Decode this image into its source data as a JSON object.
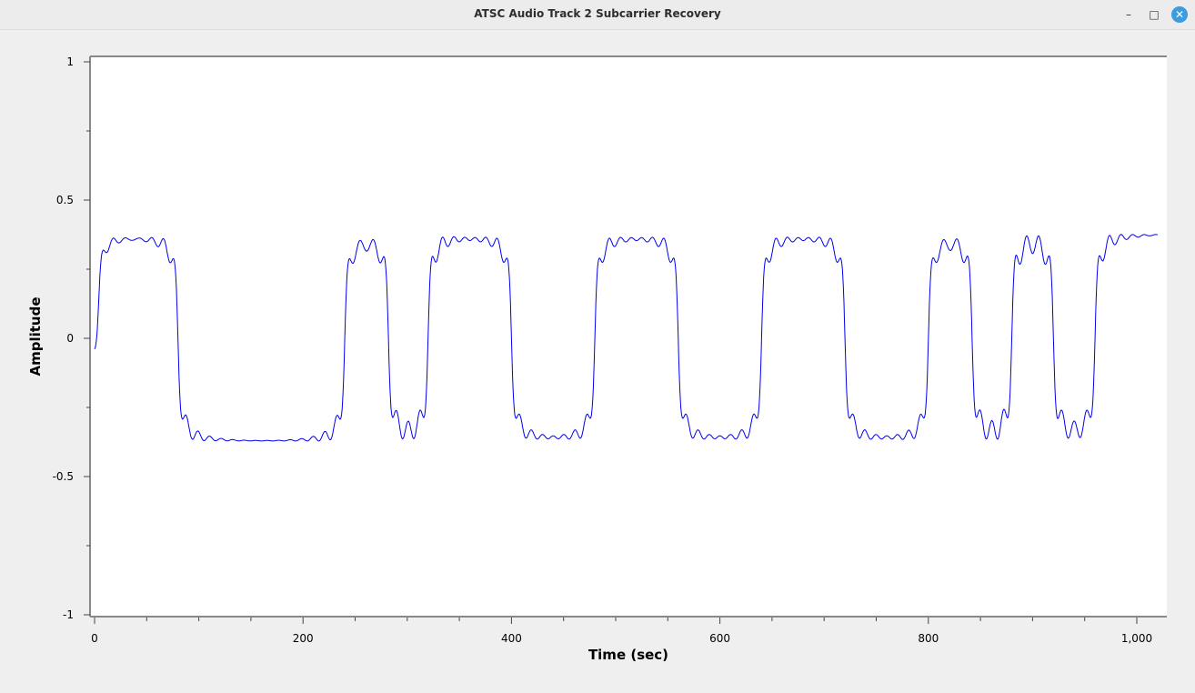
{
  "window": {
    "title": "ATSC Audio Track 2 Subcarrier Recovery",
    "minimize_icon": "minimize-icon",
    "maximize_icon": "maximize-icon",
    "close_icon": "close-icon",
    "minimize_glyph": "–",
    "maximize_glyph": "□",
    "close_glyph": "✕"
  },
  "chart_data": {
    "type": "line",
    "title": "",
    "xlabel": "Time (sec)",
    "ylabel": "Amplitude",
    "xlim": [
      0,
      1024
    ],
    "ylim": [
      -1,
      1
    ],
    "x_ticks": [
      0,
      200,
      400,
      600,
      800,
      1000
    ],
    "x_tick_labels": [
      "0",
      "200",
      "400",
      "600",
      "800",
      "1,000"
    ],
    "y_ticks": [
      1,
      0.5,
      0,
      -0.5,
      -1
    ],
    "y_tick_labels": [
      "1",
      "0.5",
      "0",
      "-0.5",
      "-1"
    ],
    "grid": false,
    "legend": "none",
    "series": [
      {
        "color": "#0000ee",
        "high_level": 0.38,
        "low_level": -0.38,
        "x_start": 0,
        "x_end": 1020,
        "start_value": -0.09,
        "transitions": [
          {
            "x": 4,
            "to": "high"
          },
          {
            "x": 80,
            "to": "low"
          },
          {
            "x": 240,
            "to": "high"
          },
          {
            "x": 282,
            "to": "low"
          },
          {
            "x": 320,
            "to": "high"
          },
          {
            "x": 400,
            "to": "low"
          },
          {
            "x": 480,
            "to": "high"
          },
          {
            "x": 560,
            "to": "low"
          },
          {
            "x": 640,
            "to": "high"
          },
          {
            "x": 720,
            "to": "low"
          },
          {
            "x": 800,
            "to": "high"
          },
          {
            "x": 842,
            "to": "low"
          },
          {
            "x": 880,
            "to": "high"
          },
          {
            "x": 920,
            "to": "low"
          },
          {
            "x": 960,
            "to": "high"
          }
        ]
      }
    ]
  }
}
